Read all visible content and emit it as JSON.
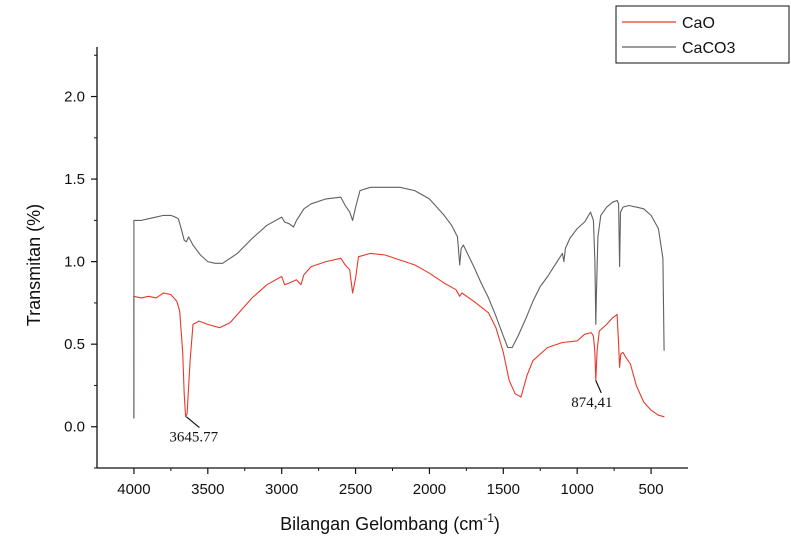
{
  "chart_data": {
    "type": "line",
    "xlabel": "Bilangan Gelombang (cm",
    "xlabel_sup": "-1",
    "xlabel_end": ")",
    "ylabel": "Transmitan (%)",
    "xlim": [
      4250,
      250
    ],
    "ylim": [
      -0.25,
      2.3
    ],
    "x_ticks": [
      "4000",
      "3500",
      "3000",
      "2500",
      "2000",
      "1500",
      "1000",
      "500"
    ],
    "y_ticks": [
      "0.0",
      "0.5",
      "1.0",
      "1.5",
      "2.0"
    ],
    "legend_position": "top-right",
    "series": [
      {
        "name": "CaO",
        "color": "#e8392b",
        "points": [
          [
            4000,
            0.05
          ],
          [
            4000,
            0.79
          ],
          [
            3950,
            0.78
          ],
          [
            3900,
            0.79
          ],
          [
            3850,
            0.78
          ],
          [
            3800,
            0.81
          ],
          [
            3750,
            0.8
          ],
          [
            3710,
            0.76
          ],
          [
            3690,
            0.7
          ],
          [
            3670,
            0.45
          ],
          [
            3660,
            0.2
          ],
          [
            3650,
            0.06
          ],
          [
            3640,
            0.08
          ],
          [
            3620,
            0.4
          ],
          [
            3600,
            0.62
          ],
          [
            3560,
            0.64
          ],
          [
            3500,
            0.62
          ],
          [
            3420,
            0.6
          ],
          [
            3350,
            0.63
          ],
          [
            3200,
            0.78
          ],
          [
            3100,
            0.86
          ],
          [
            3000,
            0.91
          ],
          [
            2980,
            0.86
          ],
          [
            2950,
            0.87
          ],
          [
            2900,
            0.89
          ],
          [
            2870,
            0.86
          ],
          [
            2850,
            0.92
          ],
          [
            2800,
            0.97
          ],
          [
            2700,
            1.0
          ],
          [
            2600,
            1.02
          ],
          [
            2570,
            0.98
          ],
          [
            2540,
            0.95
          ],
          [
            2520,
            0.81
          ],
          [
            2500,
            0.9
          ],
          [
            2480,
            1.03
          ],
          [
            2400,
            1.05
          ],
          [
            2300,
            1.04
          ],
          [
            2200,
            1.01
          ],
          [
            2100,
            0.98
          ],
          [
            2000,
            0.93
          ],
          [
            1900,
            0.87
          ],
          [
            1820,
            0.83
          ],
          [
            1795,
            0.79
          ],
          [
            1780,
            0.81
          ],
          [
            1700,
            0.76
          ],
          [
            1600,
            0.69
          ],
          [
            1550,
            0.6
          ],
          [
            1500,
            0.45
          ],
          [
            1460,
            0.28
          ],
          [
            1420,
            0.2
          ],
          [
            1380,
            0.18
          ],
          [
            1340,
            0.31
          ],
          [
            1300,
            0.4
          ],
          [
            1200,
            0.48
          ],
          [
            1100,
            0.51
          ],
          [
            1000,
            0.52
          ],
          [
            950,
            0.56
          ],
          [
            905,
            0.57
          ],
          [
            890,
            0.55
          ],
          [
            880,
            0.45
          ],
          [
            874,
            0.28
          ],
          [
            865,
            0.46
          ],
          [
            850,
            0.58
          ],
          [
            800,
            0.62
          ],
          [
            760,
            0.66
          ],
          [
            730,
            0.68
          ],
          [
            720,
            0.5
          ],
          [
            713,
            0.36
          ],
          [
            705,
            0.44
          ],
          [
            690,
            0.45
          ],
          [
            670,
            0.42
          ],
          [
            640,
            0.38
          ],
          [
            600,
            0.25
          ],
          [
            550,
            0.15
          ],
          [
            500,
            0.1
          ],
          [
            450,
            0.07
          ],
          [
            410,
            0.06
          ]
        ]
      },
      {
        "name": "CaCO3",
        "color": "#606060",
        "points": [
          [
            4000,
            0.05
          ],
          [
            4000,
            1.25
          ],
          [
            3950,
            1.25
          ],
          [
            3900,
            1.26
          ],
          [
            3850,
            1.27
          ],
          [
            3800,
            1.28
          ],
          [
            3750,
            1.28
          ],
          [
            3720,
            1.27
          ],
          [
            3700,
            1.26
          ],
          [
            3680,
            1.2
          ],
          [
            3660,
            1.13
          ],
          [
            3645,
            1.12
          ],
          [
            3630,
            1.15
          ],
          [
            3600,
            1.1
          ],
          [
            3550,
            1.04
          ],
          [
            3500,
            1.0
          ],
          [
            3450,
            0.99
          ],
          [
            3400,
            0.99
          ],
          [
            3300,
            1.05
          ],
          [
            3200,
            1.14
          ],
          [
            3100,
            1.22
          ],
          [
            3000,
            1.27
          ],
          [
            2980,
            1.24
          ],
          [
            2950,
            1.23
          ],
          [
            2920,
            1.21
          ],
          [
            2900,
            1.25
          ],
          [
            2850,
            1.32
          ],
          [
            2800,
            1.35
          ],
          [
            2700,
            1.38
          ],
          [
            2600,
            1.39
          ],
          [
            2570,
            1.34
          ],
          [
            2540,
            1.3
          ],
          [
            2520,
            1.25
          ],
          [
            2500,
            1.33
          ],
          [
            2470,
            1.43
          ],
          [
            2400,
            1.45
          ],
          [
            2300,
            1.45
          ],
          [
            2200,
            1.45
          ],
          [
            2100,
            1.43
          ],
          [
            2000,
            1.38
          ],
          [
            1900,
            1.28
          ],
          [
            1850,
            1.22
          ],
          [
            1810,
            1.15
          ],
          [
            1795,
            0.98
          ],
          [
            1785,
            1.08
          ],
          [
            1770,
            1.1
          ],
          [
            1700,
            0.97
          ],
          [
            1650,
            0.87
          ],
          [
            1600,
            0.78
          ],
          [
            1550,
            0.67
          ],
          [
            1500,
            0.55
          ],
          [
            1470,
            0.48
          ],
          [
            1440,
            0.48
          ],
          [
            1400,
            0.55
          ],
          [
            1350,
            0.65
          ],
          [
            1300,
            0.76
          ],
          [
            1250,
            0.85
          ],
          [
            1200,
            0.91
          ],
          [
            1150,
            0.98
          ],
          [
            1100,
            1.05
          ],
          [
            1090,
            1.0
          ],
          [
            1080,
            1.08
          ],
          [
            1050,
            1.14
          ],
          [
            1000,
            1.2
          ],
          [
            950,
            1.24
          ],
          [
            910,
            1.3
          ],
          [
            890,
            1.25
          ],
          [
            880,
            1.0
          ],
          [
            874,
            0.62
          ],
          [
            870,
            0.8
          ],
          [
            860,
            1.15
          ],
          [
            840,
            1.28
          ],
          [
            800,
            1.33
          ],
          [
            760,
            1.36
          ],
          [
            730,
            1.37
          ],
          [
            720,
            1.35
          ],
          [
            713,
            0.97
          ],
          [
            707,
            1.3
          ],
          [
            690,
            1.33
          ],
          [
            650,
            1.34
          ],
          [
            600,
            1.33
          ],
          [
            550,
            1.32
          ],
          [
            500,
            1.28
          ],
          [
            450,
            1.2
          ],
          [
            420,
            1.02
          ],
          [
            412,
            0.46
          ]
        ]
      }
    ],
    "annotations": [
      {
        "text": "3645.77",
        "x": 3645,
        "y": 0.06,
        "label_x": 3760,
        "label_y": -0.09
      },
      {
        "text": "874,41",
        "x": 874,
        "y": 0.28,
        "label_x": 1040,
        "label_y": 0.12
      }
    ]
  }
}
